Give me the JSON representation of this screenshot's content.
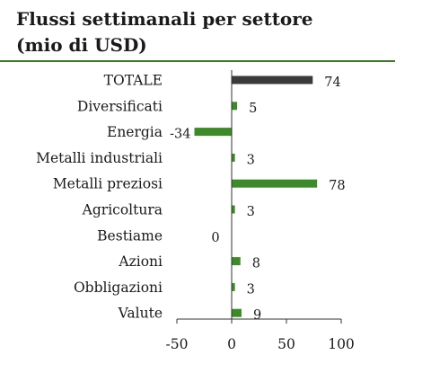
{
  "chart_data": {
    "type": "bar",
    "orientation": "horizontal",
    "title_line1": "Flussi settimanali per settore",
    "title_line2": "(mio di USD)",
    "categories": [
      "TOTALE",
      "Diversificati",
      "Energia",
      "Metalli industriali",
      "Metalli preziosi",
      "Agricoltura",
      "Bestiame",
      "Azioni",
      "Obbligazioni",
      "Valute"
    ],
    "values": [
      74,
      5,
      -34,
      3,
      78,
      3,
      0,
      8,
      3,
      9
    ],
    "value_labels": [
      "74",
      "5",
      "-34",
      "3",
      "78",
      "3",
      "0",
      "8",
      "3",
      "9"
    ],
    "xlim": [
      -50,
      100
    ],
    "xticks": [
      -50,
      0,
      50,
      100
    ],
    "xtick_labels": [
      "-50",
      "0",
      "50",
      "100"
    ],
    "grid": false,
    "colors": {
      "total": "#3a3a3a",
      "sector": "#3d8b28",
      "rule": "#3a7d23"
    }
  }
}
